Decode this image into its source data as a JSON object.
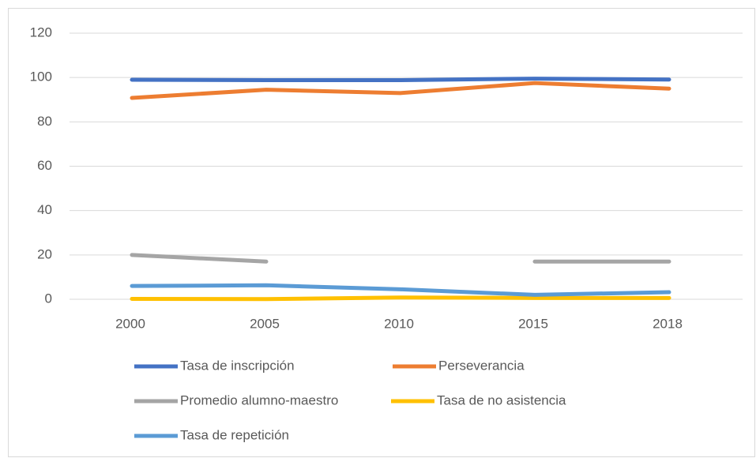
{
  "chart_data": {
    "type": "line",
    "categories": [
      "2000",
      "2005",
      "2010",
      "2015",
      "2018"
    ],
    "series": [
      {
        "name": "Tasa de inscripción",
        "color": "#4472c4",
        "values": [
          99,
          98.8,
          98.8,
          99.5,
          99.1
        ]
      },
      {
        "name": "Perseverancia",
        "color": "#ed7d31",
        "values": [
          90.8,
          94.5,
          93,
          97.5,
          95
        ]
      },
      {
        "name": "Promedio alumno-maestro",
        "color": "#a5a5a5",
        "values": [
          20,
          17,
          null,
          17,
          17
        ]
      },
      {
        "name": "Tasa de no asistencia",
        "color": "#ffc000",
        "values": [
          0.2,
          0.1,
          0.8,
          0.6,
          0.6
        ]
      },
      {
        "name": "Tasa de repetición",
        "color": "#5b9bd5",
        "values": [
          6,
          6.3,
          4.5,
          2,
          3.2
        ]
      }
    ],
    "ylim": [
      0,
      120
    ],
    "yticks": [
      0,
      20,
      40,
      60,
      80,
      100,
      120
    ],
    "grid": true,
    "legend": "bottom"
  }
}
